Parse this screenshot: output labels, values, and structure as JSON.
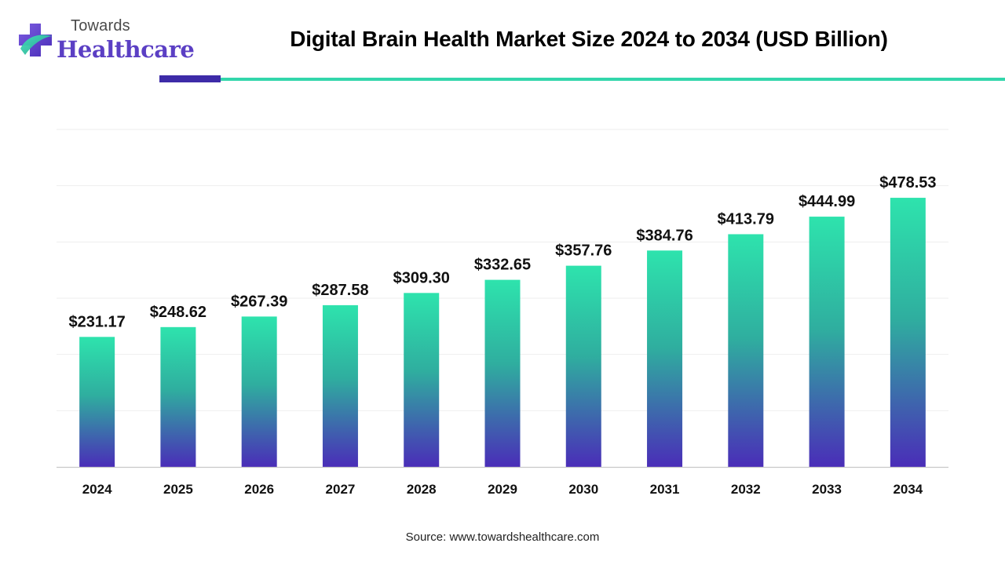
{
  "brand": {
    "line1": "Towards",
    "line2": "Healthcare",
    "logo_icon": "medical-cross-icon",
    "colors": {
      "purple": "#5b3fc4",
      "teal": "#33d6ab"
    }
  },
  "header": {
    "title": "Digital Brain Health Market Size 2024 to 2034 (USD Billion)"
  },
  "chart_data": {
    "type": "bar",
    "categories": [
      "2024",
      "2025",
      "2026",
      "2027",
      "2028",
      "2029",
      "2030",
      "2031",
      "2032",
      "2033",
      "2034"
    ],
    "values": [
      231.17,
      248.62,
      267.39,
      287.58,
      309.3,
      332.65,
      357.76,
      384.76,
      413.79,
      444.99,
      478.53
    ],
    "value_labels": [
      "$231.17",
      "$248.62",
      "$267.39",
      "$287.58",
      "$309.30",
      "$332.65",
      "$357.76",
      "$384.76",
      "$413.79",
      "$444.99",
      "$478.53"
    ],
    "title": "Digital Brain Health Market Size 2024 to 2034 (USD Billion)",
    "xlabel": "",
    "ylabel": "",
    "grid": true,
    "legend": "none",
    "bar_gradient": {
      "top": "#2ee3ad",
      "middle": "#2fae9f",
      "bottom": "#4a2db8"
    }
  },
  "footer": {
    "source": "Source: www.towardshealthcare.com"
  }
}
